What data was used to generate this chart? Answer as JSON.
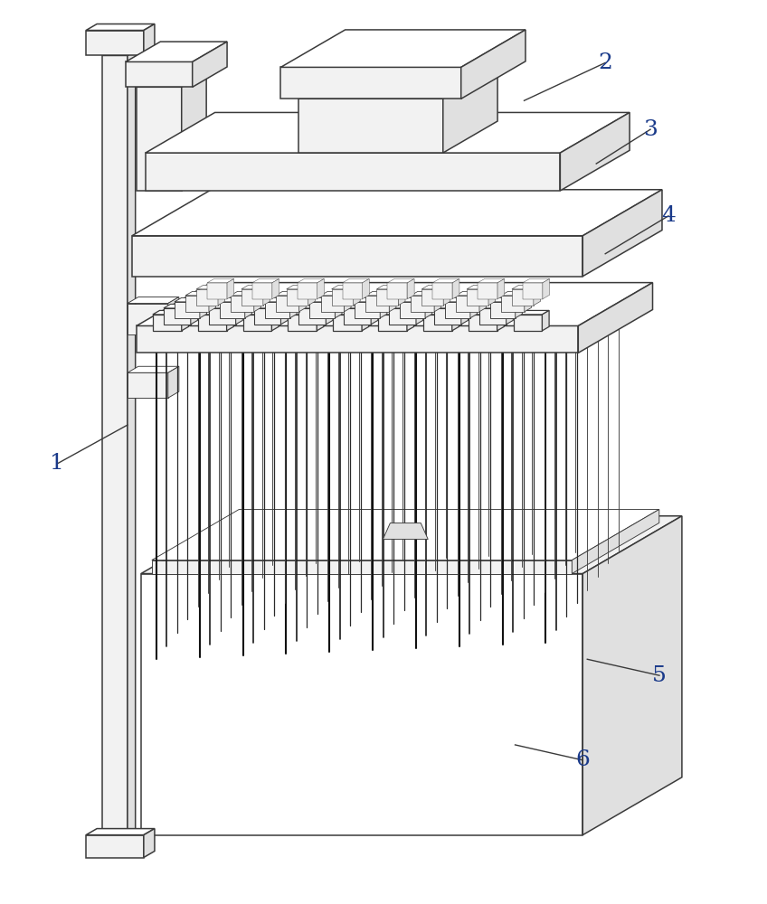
{
  "bg_color": "#ffffff",
  "ec": "#3a3a3a",
  "fc_white": "#ffffff",
  "fc_light": "#f2f2f2",
  "fc_mid": "#e0e0e0",
  "fc_dark": "#c8c8c8",
  "label_color": "#1a3a8a",
  "leader_color": "#3a3a3a",
  "lw_main": 1.1,
  "lw_thin": 0.65,
  "fig_width": 8.48,
  "fig_height": 10.0,
  "dpi": 100
}
